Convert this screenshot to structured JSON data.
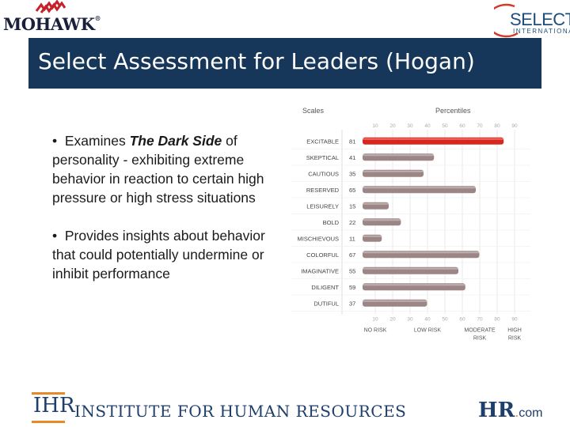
{
  "header": {
    "left_logo": "MOHAWK",
    "right_logo": "SELECT",
    "right_logo_sub": "INTERNATIONAL",
    "title": "Select Assessment for Leaders (Hogan)"
  },
  "bullets": {
    "b1_prefix": "Examines ",
    "b1_emphasis": "The Dark Side",
    "b1_rest": " of personality - exhibiting extreme behavior in reaction to certain high pressure or high stress situations",
    "b2": "Provides insights about behavior that could potentially undermine or inhibit performance"
  },
  "footer": {
    "ihr_mark": "IHR",
    "ihr_name": "INSTITUTE FOR HUMAN RESOURCES",
    "hr_mark": "HR",
    "hr_dot": ".",
    "hr_com": "com"
  },
  "colors": {
    "title_bg": "#16375a",
    "bar_default": "#9b8585",
    "bar_highlight": "#d9261c"
  },
  "chart_data": {
    "type": "bar",
    "orientation": "horizontal",
    "scales_header": "Scales",
    "percentiles_header": "Percentiles",
    "categories": [
      "EXCITABLE",
      "SKEPTICAL",
      "CAUTIOUS",
      "RESERVED",
      "LEISURELY",
      "BOLD",
      "MISCHIEVOUS",
      "COLORFUL",
      "IMAGINATIVE",
      "DILIGENT",
      "DUTIFUL"
    ],
    "values": [
      81,
      41,
      35,
      65,
      15,
      22,
      11,
      67,
      55,
      59,
      37
    ],
    "highlight_index": 0,
    "xlim": [
      0,
      100
    ],
    "ticks": [
      "10",
      "20",
      "30",
      "40",
      "50",
      "60",
      "70",
      "80",
      "90"
    ],
    "risk_labels": [
      {
        "line1": "NO RISK",
        "line2": "",
        "at": 10
      },
      {
        "line1": "LOW RISK",
        "line2": "",
        "at": 40
      },
      {
        "line1": "MODERATE",
        "line2": "RISK",
        "at": 70
      },
      {
        "line1": "HIGH",
        "line2": "RISK",
        "at": 90
      }
    ]
  }
}
